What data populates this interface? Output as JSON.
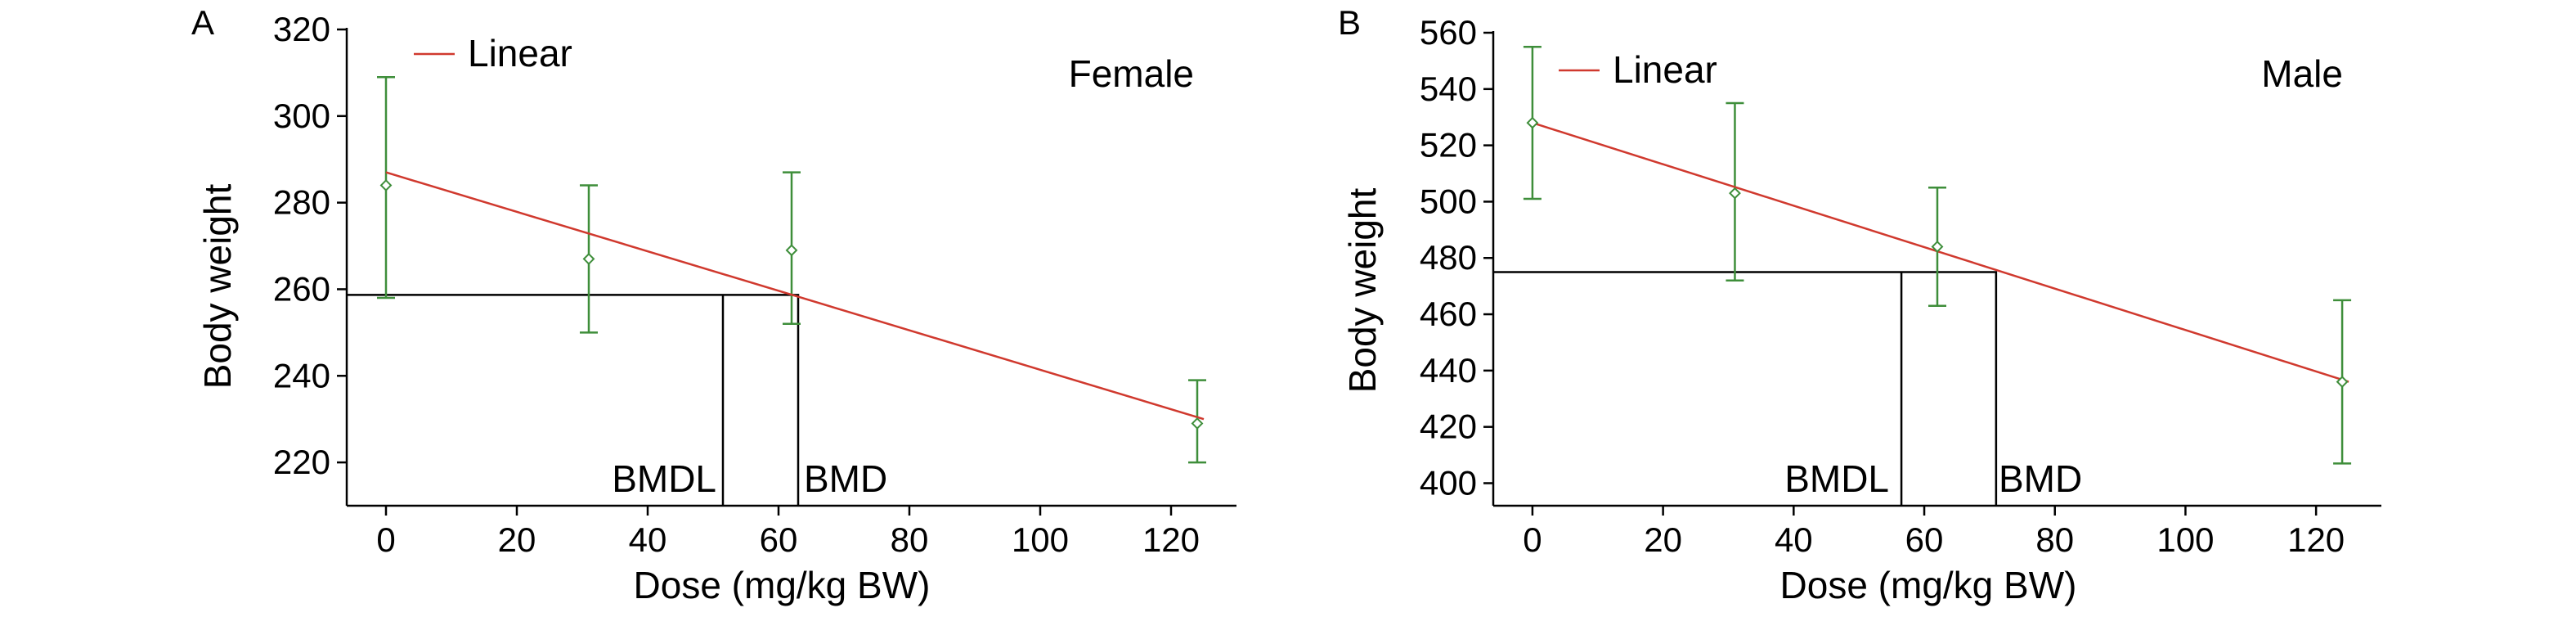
{
  "chart_data": [
    {
      "panel": "A",
      "type": "line",
      "annotation": "Female",
      "xlabel": "Dose (mg/kg BW)",
      "ylabel": "Body weight",
      "xlim": [
        -6,
        130
      ],
      "ylim": [
        210,
        320
      ],
      "xticks": [
        0,
        20,
        40,
        60,
        80,
        100,
        120
      ],
      "yticks": [
        220,
        240,
        260,
        280,
        300,
        320
      ],
      "legend": {
        "position": "top-left",
        "entries": [
          "Linear"
        ]
      },
      "fit": {
        "name": "Linear",
        "x": [
          0,
          125
        ],
        "y": [
          287,
          230
        ],
        "color": "#d0392e"
      },
      "points": [
        {
          "x": 0,
          "y": 284,
          "lower": 258,
          "upper": 309
        },
        {
          "x": 31,
          "y": 267,
          "lower": 250,
          "upper": 284
        },
        {
          "x": 62,
          "y": 269,
          "lower": 252,
          "upper": 287
        },
        {
          "x": 124,
          "y": 229,
          "lower": 220,
          "upper": 239
        }
      ],
      "bmr_level": 258.7,
      "bmdl": {
        "label": "BMDL",
        "x": 51.5
      },
      "bmd": {
        "label": "BMD",
        "x": 63
      }
    },
    {
      "panel": "B",
      "type": "line",
      "annotation": "Male",
      "xlabel": "Dose (mg/kg BW)",
      "ylabel": "Body weight",
      "xlim": [
        -6,
        130
      ],
      "ylim": [
        392,
        560
      ],
      "xticks": [
        0,
        20,
        40,
        60,
        80,
        100,
        120
      ],
      "yticks": [
        400,
        420,
        440,
        460,
        480,
        500,
        520,
        540,
        560
      ],
      "legend": {
        "position": "top-left",
        "entries": [
          "Linear"
        ]
      },
      "fit": {
        "name": "Linear",
        "x": [
          0,
          125
        ],
        "y": [
          528,
          436
        ],
        "color": "#d0392e"
      },
      "points": [
        {
          "x": 0,
          "y": 528,
          "lower": 501,
          "upper": 555
        },
        {
          "x": 31,
          "y": 503,
          "lower": 472,
          "upper": 535
        },
        {
          "x": 62,
          "y": 484,
          "lower": 463,
          "upper": 505
        },
        {
          "x": 124,
          "y": 436,
          "lower": 407,
          "upper": 465
        }
      ],
      "bmr_level": 475,
      "bmdl": {
        "label": "BMDL",
        "x": 56.5
      },
      "bmd": {
        "label": "BMD",
        "x": 71
      }
    }
  ],
  "colors": {
    "fit": "#d0392e",
    "data": "#3e8e3a",
    "axis": "#000000"
  }
}
